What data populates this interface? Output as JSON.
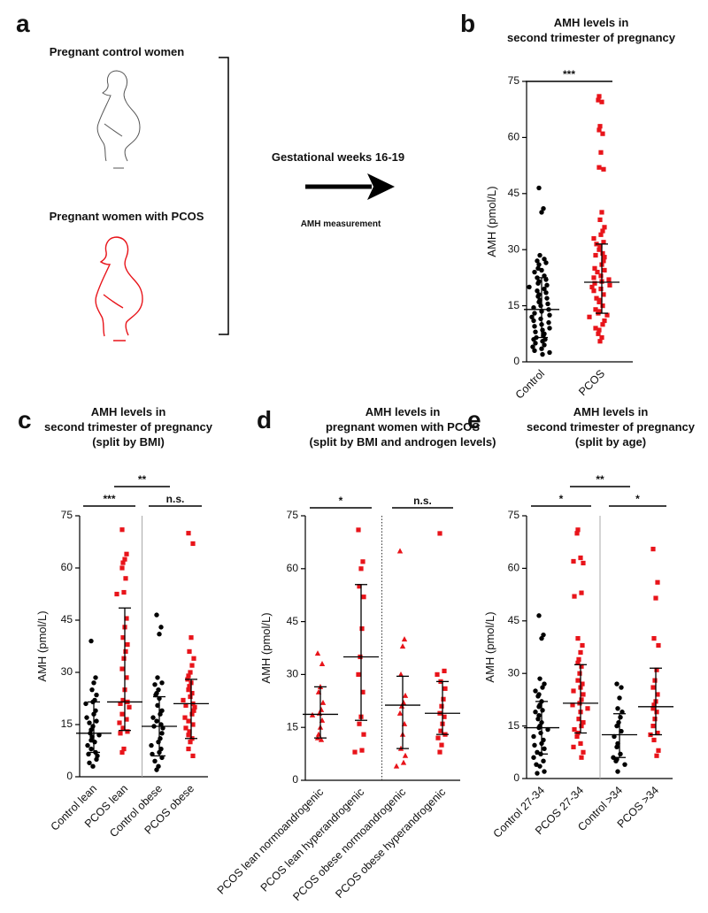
{
  "panel_a": {
    "label": "a",
    "control_label": "Pregnant control women",
    "pcos_label": "Pregnant women with PCOS",
    "arrow_label": "Gestational weeks 16-19",
    "measurement_label": "AMH measurement"
  },
  "chart_data": [
    {
      "type": "dot",
      "label": "b",
      "title": [
        "AMH levels in",
        "second trimester of pregnancy"
      ],
      "ylabel": "AMH (pmol/L)",
      "ylim": [
        0,
        75
      ],
      "yticks": [
        0,
        15,
        30,
        45,
        60,
        75
      ],
      "groups": [
        {
          "name": "Control",
          "color": "#000000",
          "marker": "circle",
          "values": [
            46.5,
            41,
            40,
            28.5,
            27.5,
            27,
            26.5,
            26,
            25,
            24.5,
            24,
            23,
            22.5,
            22,
            21.5,
            21,
            20.5,
            20,
            19.5,
            19,
            18.5,
            18,
            17.5,
            17,
            16.5,
            16,
            15.5,
            15,
            14.5,
            14,
            13.5,
            13,
            12.5,
            12,
            11.5,
            11,
            10.5,
            10,
            9.5,
            9,
            8.5,
            8,
            7.5,
            7,
            6.5,
            6,
            6,
            5.5,
            5,
            4.5,
            4,
            3.5,
            3,
            2.5,
            2
          ],
          "median": 14,
          "q1": 6.5,
          "q3": 22.5
        },
        {
          "name": "PCOS",
          "color": "#e8141a",
          "marker": "square",
          "values": [
            71,
            70,
            69.5,
            63,
            62,
            61,
            56,
            52,
            51.5,
            40,
            38,
            36,
            35,
            34,
            33,
            32,
            31.5,
            31,
            30,
            29,
            28.5,
            28,
            27,
            26,
            25,
            24.5,
            24,
            23,
            22.5,
            22,
            21.5,
            21,
            20.5,
            20,
            19.5,
            19,
            18,
            17,
            16.5,
            16,
            15,
            14,
            13.5,
            13,
            12.5,
            12,
            11,
            10,
            9,
            8.5,
            7.5,
            6.5,
            5.5
          ],
          "median": 21.3,
          "q1": 13,
          "q3": 31.5
        }
      ],
      "significance": [
        {
          "between": [
            0,
            1
          ],
          "label": "***"
        }
      ]
    },
    {
      "type": "dot",
      "label": "c",
      "title": [
        "AMH levels in",
        "second trimester of pregnancy",
        "(split by BMI)"
      ],
      "ylabel": "AMH (pmol/L)",
      "ylim": [
        0,
        75
      ],
      "yticks": [
        0,
        15,
        30,
        45,
        60,
        75
      ],
      "groups": [
        {
          "name": "Control lean",
          "color": "#000000",
          "marker": "circle",
          "values": [
            39,
            28.5,
            27,
            25,
            23.5,
            22,
            21.5,
            21,
            19,
            18,
            17,
            16,
            15.5,
            14.5,
            13.5,
            12.5,
            12,
            11.5,
            10.5,
            10,
            9,
            8,
            7,
            6.5,
            6,
            5,
            4,
            3
          ],
          "median": 12.5,
          "q1": 7,
          "q3": 21.5
        },
        {
          "name": "PCOS lean",
          "color": "#e8141a",
          "marker": "square",
          "values": [
            71,
            64,
            62.5,
            61.5,
            60,
            57,
            53,
            52.5,
            45.5,
            43,
            40,
            38,
            36,
            34,
            31,
            28.5,
            25,
            22,
            21.5,
            21,
            20,
            18,
            16.5,
            15.5,
            14,
            13,
            12.5,
            8,
            7
          ],
          "median": 21.5,
          "q1": 13.3,
          "q3": 48.5
        },
        {
          "name": "Control obese",
          "color": "#000000",
          "marker": "circle",
          "values": [
            46.5,
            43,
            41,
            28.5,
            27,
            26.5,
            25,
            24,
            23.5,
            22.5,
            20.5,
            19,
            18,
            17,
            16,
            15,
            14.5,
            14,
            12.5,
            11,
            10,
            9,
            8,
            7,
            6.5,
            5.5,
            4.5,
            3,
            2
          ],
          "median": 14.5,
          "q1": 6,
          "q3": 23
        },
        {
          "name": "PCOS obese",
          "color": "#e8141a",
          "marker": "square",
          "values": [
            70,
            67,
            40,
            36,
            34,
            32,
            30,
            29,
            28,
            27,
            26,
            25,
            24,
            23,
            22,
            21,
            20.5,
            20,
            19,
            18,
            17,
            16,
            15,
            14,
            13,
            12,
            11,
            10,
            8,
            6
          ],
          "median": 21,
          "q1": 11,
          "q3": 28
        }
      ],
      "significance": [
        {
          "between": [
            0,
            1
          ],
          "label": "***"
        },
        {
          "between": [
            1,
            2
          ],
          "label": "**"
        },
        {
          "between": [
            2,
            3
          ],
          "label": "n.s."
        }
      ],
      "separator": {
        "after": 1,
        "style": "solid"
      }
    },
    {
      "type": "dot",
      "label": "d",
      "title": [
        "AMH levels in",
        "pregnant women with PCOS",
        "(split by BMI and androgen levels)"
      ],
      "ylabel": "AMH (pmol/L)",
      "ylim": [
        0,
        75
      ],
      "yticks": [
        0,
        15,
        30,
        45,
        60,
        75
      ],
      "groups": [
        {
          "name": "PCOS lean normoandrogenic",
          "color": "#e8141a",
          "marker": "triangle",
          "values": [
            36,
            33,
            26.5,
            25,
            22,
            20,
            19,
            18.5,
            17,
            15,
            13,
            12,
            11.5
          ],
          "median": 18.7,
          "q1": 12,
          "q3": 26.5
        },
        {
          "name": "PCOS lean hyperandrogenic",
          "color": "#e8141a",
          "marker": "square",
          "values": [
            71,
            62,
            60,
            55,
            52,
            43,
            35,
            30,
            25,
            18,
            16,
            13,
            8.5,
            8
          ],
          "median": 35,
          "q1": 17,
          "q3": 55.5
        },
        {
          "name": "PCOS obese normoandrogenic",
          "color": "#e8141a",
          "marker": "triangle",
          "values": [
            65,
            40,
            38,
            30,
            24,
            22,
            21,
            19,
            16,
            13,
            9,
            7,
            5,
            4
          ],
          "median": 21.3,
          "q1": 9,
          "q3": 29.5
        },
        {
          "name": "PCOS obese hyperandrogenic",
          "color": "#e8141a",
          "marker": "square",
          "values": [
            70,
            31,
            30,
            28,
            26,
            23,
            21,
            19,
            18,
            16,
            14,
            13,
            12,
            10,
            8
          ],
          "median": 19,
          "q1": 13,
          "q3": 28
        }
      ],
      "significance": [
        {
          "between": [
            0,
            1
          ],
          "label": "*"
        },
        {
          "between": [
            2,
            3
          ],
          "label": "n.s."
        }
      ],
      "separator": {
        "after": 1,
        "style": "dotted"
      }
    },
    {
      "type": "dot",
      "label": "e",
      "title": [
        "AMH levels in",
        "second trimester of pregnancy",
        "(split by age)"
      ],
      "ylabel": "AMH (pmol/L)",
      "ylim": [
        0,
        75
      ],
      "yticks": [
        0,
        15,
        30,
        45,
        60,
        75
      ],
      "groups": [
        {
          "name": "Control 27-34",
          "color": "#000000",
          "marker": "circle",
          "values": [
            46.5,
            41,
            40,
            28.5,
            27,
            26,
            25,
            24,
            23.5,
            22,
            21,
            20.5,
            19.5,
            19,
            18,
            17,
            16,
            15,
            14.5,
            14,
            13,
            12,
            11,
            10,
            9.5,
            8.5,
            7.5,
            7,
            6,
            5,
            4,
            3.5,
            2,
            1.5
          ],
          "median": 14.5,
          "q1": 7,
          "q3": 22
        },
        {
          "name": "PCOS 27-34",
          "color": "#e8141a",
          "marker": "square",
          "values": [
            71,
            70,
            63,
            62,
            61.5,
            53,
            52,
            40,
            38,
            36,
            34,
            33,
            32,
            30,
            28,
            27,
            26,
            25,
            24,
            22.5,
            21.5,
            21,
            20,
            19,
            17,
            16,
            15,
            14,
            13,
            12,
            10,
            9,
            7.5,
            6
          ],
          "median": 21.5,
          "q1": 13,
          "q3": 32.5
        },
        {
          "name": "Control >34",
          "color": "#000000",
          "marker": "circle",
          "values": [
            27,
            26,
            23,
            20,
            19,
            17.5,
            16,
            15,
            13.5,
            12,
            10,
            9,
            7,
            6,
            5.5,
            5,
            4,
            2
          ],
          "median": 12.5,
          "q1": 6,
          "q3": 18.5
        },
        {
          "name": "PCOS >34",
          "color": "#e8141a",
          "marker": "square",
          "values": [
            65.5,
            56,
            51.5,
            40,
            38,
            31,
            28,
            26,
            24,
            22,
            21,
            20,
            19,
            17,
            15,
            13,
            12.5,
            11,
            8,
            6.5
          ],
          "median": 20.5,
          "q1": 12.5,
          "q3": 31.5
        }
      ],
      "significance": [
        {
          "between": [
            0,
            1
          ],
          "label": "*"
        },
        {
          "between": [
            1,
            2
          ],
          "label": "**"
        },
        {
          "between": [
            2,
            3
          ],
          "label": "*"
        }
      ],
      "separator": {
        "after": 1,
        "style": "solid"
      }
    }
  ]
}
